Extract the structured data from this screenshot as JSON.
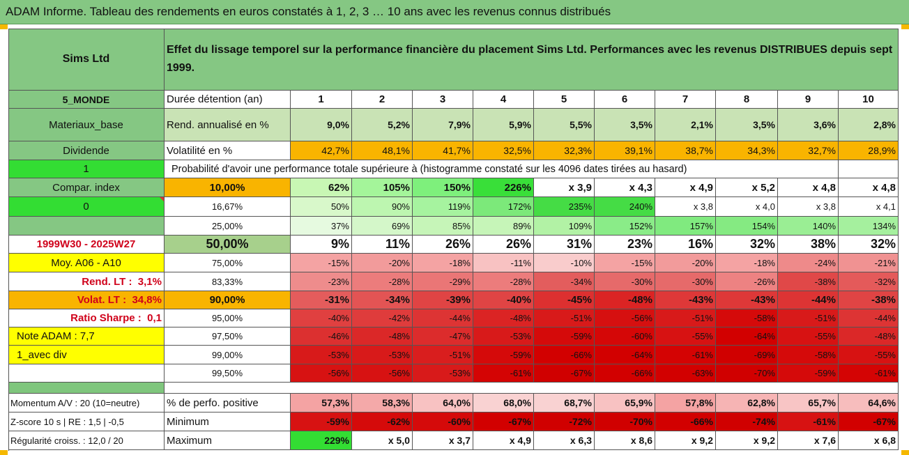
{
  "title": "ADAM Informe. Tableau des rendements en euros constatés à 1, 2, 3 … 10 ans avec les revenus connus distribués",
  "colors": {
    "header_green": "#85c783",
    "orange": "#f9b400",
    "bright_green": "#33dd33",
    "yellow": "#ffff00"
  },
  "header": {
    "company": "Sims Ltd",
    "description": "Effet du lissage temporel sur la performance financière du placement Sims Ltd. Performances avec les revenus DISTRIBUES depuis sept 1999."
  },
  "years": [
    "1",
    "2",
    "3",
    "4",
    "5",
    "6",
    "7",
    "8",
    "9",
    "10"
  ],
  "side": {
    "region": "5_MONDE",
    "sector": "Materiaux_base",
    "dividend": "Dividende",
    "flag": "1",
    "compar": "Compar. index",
    "flag0": "0",
    "period": "1999W30 - 2025W27",
    "moy": "Moy. A06 - A10",
    "rend_lt_label": "Rend. LT :",
    "rend_lt_value": "3,1%",
    "volat_lt_label": "Volat. LT :",
    "volat_lt_value": "34,8%",
    "sharpe_label": "Ratio Sharpe :",
    "sharpe_value": "0,1",
    "note": "Note ADAM : 7,7",
    "div": "1_avec div"
  },
  "labels": {
    "duree": "Durée détention (an)",
    "rend": "Rend. annualisé en %",
    "vol": "Volatilité en %",
    "prob": "Probabilité d'avoir une performance totale supérieure à (histogramme constaté sur les 4096 dates tirées au hasard)"
  },
  "rend": [
    "9,0%",
    "5,2%",
    "7,9%",
    "5,9%",
    "5,5%",
    "3,5%",
    "2,1%",
    "3,5%",
    "3,6%",
    "2,8%"
  ],
  "vol": [
    "42,7%",
    "48,1%",
    "41,7%",
    "32,5%",
    "32,3%",
    "39,1%",
    "38,7%",
    "34,3%",
    "32,7%",
    "28,9%"
  ],
  "quantiles": [
    {
      "p": "10,00%",
      "values": [
        "62%",
        "105%",
        "150%",
        "226%",
        "x 3,9",
        "x 4,3",
        "x 4,9",
        "x 5,2",
        "x 4,8",
        "x 4,8"
      ]
    },
    {
      "p": "16,67%",
      "values": [
        "50%",
        "90%",
        "119%",
        "172%",
        "235%",
        "240%",
        "x 3,8",
        "x 4,0",
        "x 3,8",
        "x 4,1"
      ]
    },
    {
      "p": "25,00%",
      "values": [
        "37%",
        "69%",
        "85%",
        "89%",
        "109%",
        "152%",
        "157%",
        "154%",
        "140%",
        "134%"
      ]
    },
    {
      "p": "50,00%",
      "values": [
        "9%",
        "11%",
        "26%",
        "26%",
        "31%",
        "23%",
        "16%",
        "32%",
        "38%",
        "32%"
      ]
    },
    {
      "p": "75,00%",
      "values": [
        "-15%",
        "-20%",
        "-18%",
        "-11%",
        "-10%",
        "-15%",
        "-20%",
        "-18%",
        "-24%",
        "-21%"
      ]
    },
    {
      "p": "83,33%",
      "values": [
        "-23%",
        "-28%",
        "-29%",
        "-28%",
        "-34%",
        "-30%",
        "-30%",
        "-26%",
        "-38%",
        "-32%"
      ]
    },
    {
      "p": "90,00%",
      "values": [
        "-31%",
        "-34%",
        "-39%",
        "-40%",
        "-45%",
        "-48%",
        "-43%",
        "-43%",
        "-44%",
        "-38%"
      ]
    },
    {
      "p": "95,00%",
      "values": [
        "-40%",
        "-42%",
        "-44%",
        "-48%",
        "-51%",
        "-56%",
        "-51%",
        "-58%",
        "-51%",
        "-44%"
      ]
    },
    {
      "p": "97,50%",
      "values": [
        "-46%",
        "-48%",
        "-47%",
        "-53%",
        "-59%",
        "-60%",
        "-55%",
        "-64%",
        "-55%",
        "-48%"
      ]
    },
    {
      "p": "99,00%",
      "values": [
        "-53%",
        "-53%",
        "-51%",
        "-59%",
        "-66%",
        "-64%",
        "-61%",
        "-69%",
        "-58%",
        "-55%"
      ]
    },
    {
      "p": "99,50%",
      "values": [
        "-56%",
        "-56%",
        "-53%",
        "-61%",
        "-67%",
        "-66%",
        "-63%",
        "-70%",
        "-59%",
        "-61%"
      ]
    }
  ],
  "stats": [
    {
      "side": "Momentum A/V : 20 (10=neutre)",
      "label": "% de perfo. positive",
      "values": [
        "57,3%",
        "58,3%",
        "64,0%",
        "68,0%",
        "68,7%",
        "65,9%",
        "57,8%",
        "62,8%",
        "65,7%",
        "64,6%"
      ]
    },
    {
      "side": "Z-score 10 s | RE : 1,5 | -0,5",
      "label": "Minimum",
      "values": [
        "-59%",
        "-62%",
        "-60%",
        "-67%",
        "-72%",
        "-70%",
        "-66%",
        "-74%",
        "-61%",
        "-67%"
      ]
    },
    {
      "side": "Régularité croiss. : 12,0 / 20",
      "label": "Maximum",
      "values": [
        "229%",
        "x 5,0",
        "x 3,7",
        "x 4,9",
        "x 6,3",
        "x 8,6",
        "x 9,2",
        "x 9,2",
        "x 7,6",
        "x 6,8"
      ]
    }
  ]
}
